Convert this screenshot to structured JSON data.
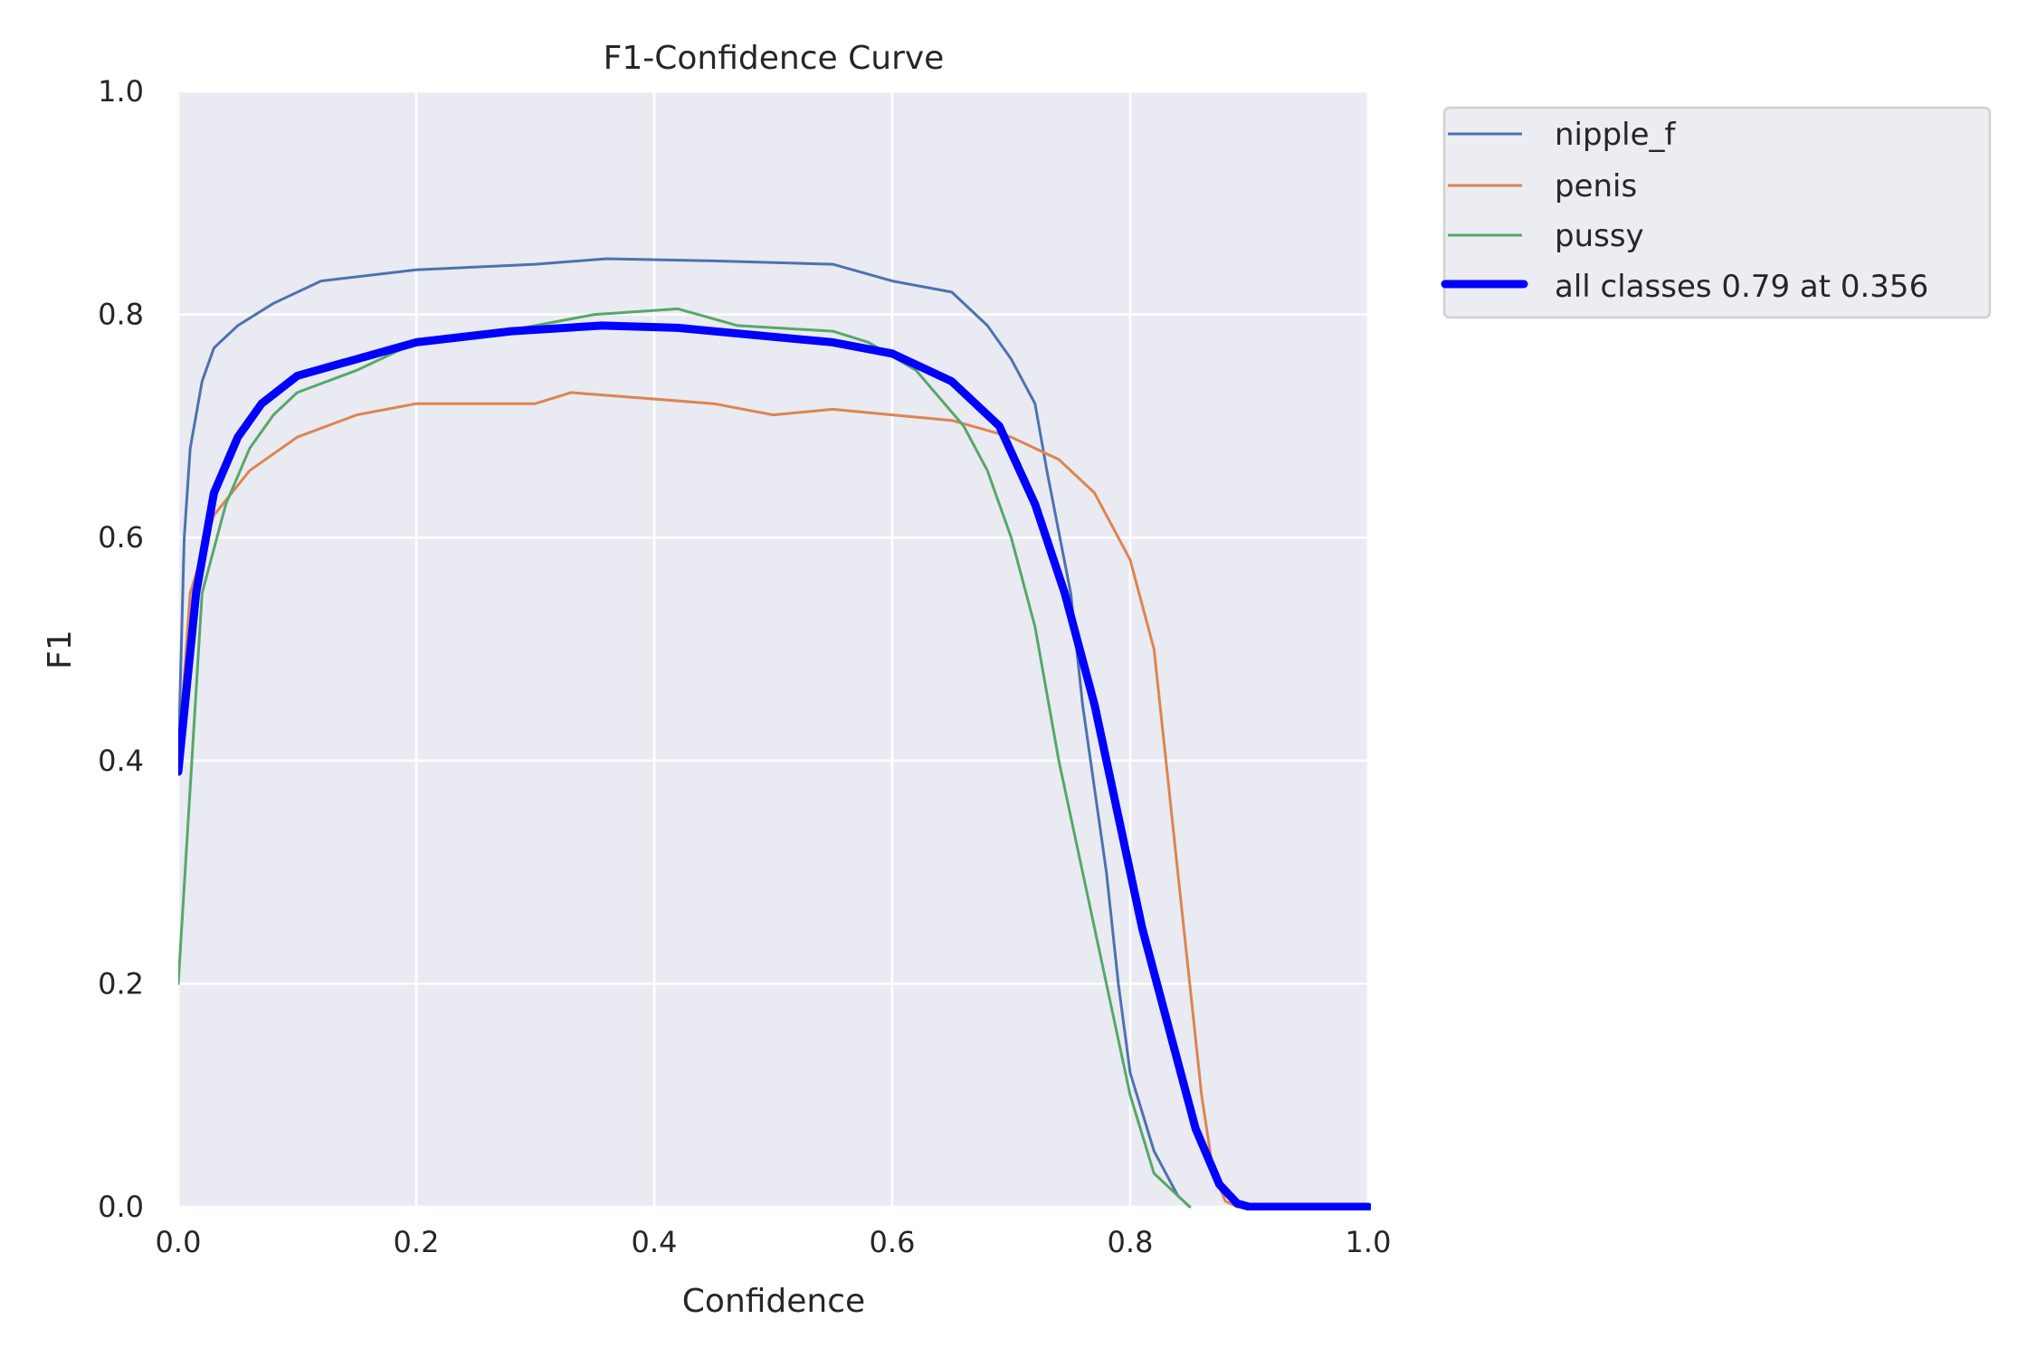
{
  "chart_data": {
    "type": "line",
    "title": "F1-Confidence Curve",
    "xlabel": "Confidence",
    "ylabel": "F1",
    "xlim": [
      0,
      1
    ],
    "ylim": [
      0,
      1
    ],
    "xticks": [
      "0.0",
      "0.2",
      "0.4",
      "0.6",
      "0.8",
      "1.0"
    ],
    "yticks": [
      "0.0",
      "0.2",
      "0.4",
      "0.6",
      "0.8",
      "1.0"
    ],
    "grid": true,
    "legend_position": "outside upper right",
    "series": [
      {
        "name": "nipple_f",
        "color": "#4c72b0",
        "width": 3,
        "x": [
          0,
          0.005,
          0.01,
          0.02,
          0.03,
          0.05,
          0.08,
          0.12,
          0.2,
          0.3,
          0.36,
          0.45,
          0.55,
          0.6,
          0.65,
          0.68,
          0.7,
          0.72,
          0.73,
          0.75,
          0.76,
          0.78,
          0.79,
          0.8,
          0.82,
          0.84,
          0.85
        ],
        "y": [
          0.4,
          0.6,
          0.68,
          0.74,
          0.77,
          0.79,
          0.81,
          0.83,
          0.84,
          0.845,
          0.85,
          0.848,
          0.845,
          0.83,
          0.82,
          0.79,
          0.76,
          0.72,
          0.66,
          0.55,
          0.45,
          0.3,
          0.2,
          0.12,
          0.05,
          0.01,
          0
        ]
      },
      {
        "name": "penis",
        "color": "#dd8452",
        "width": 3,
        "x": [
          0,
          0.01,
          0.03,
          0.06,
          0.1,
          0.15,
          0.2,
          0.3,
          0.33,
          0.45,
          0.5,
          0.55,
          0.6,
          0.65,
          0.7,
          0.74,
          0.77,
          0.8,
          0.82,
          0.83,
          0.84,
          0.85,
          0.86,
          0.87,
          0.88,
          0.89
        ],
        "y": [
          0.4,
          0.55,
          0.62,
          0.66,
          0.69,
          0.71,
          0.72,
          0.72,
          0.73,
          0.72,
          0.71,
          0.715,
          0.71,
          0.705,
          0.69,
          0.67,
          0.64,
          0.58,
          0.5,
          0.4,
          0.3,
          0.2,
          0.1,
          0.03,
          0.005,
          0
        ]
      },
      {
        "name": "pussy",
        "color": "#55a868",
        "width": 3,
        "x": [
          0,
          0.02,
          0.04,
          0.06,
          0.08,
          0.1,
          0.15,
          0.2,
          0.25,
          0.3,
          0.35,
          0.42,
          0.47,
          0.55,
          0.58,
          0.62,
          0.66,
          0.68,
          0.7,
          0.72,
          0.74,
          0.76,
          0.78,
          0.8,
          0.82,
          0.84,
          0.85
        ],
        "y": [
          0.2,
          0.55,
          0.63,
          0.68,
          0.71,
          0.73,
          0.75,
          0.775,
          0.78,
          0.79,
          0.8,
          0.805,
          0.79,
          0.785,
          0.775,
          0.75,
          0.7,
          0.66,
          0.6,
          0.52,
          0.4,
          0.3,
          0.2,
          0.1,
          0.03,
          0.01,
          0
        ]
      },
      {
        "name": "all classes 0.79 at 0.356",
        "color": "#0000ff",
        "width": 9,
        "x": [
          0,
          0.015,
          0.03,
          0.05,
          0.07,
          0.1,
          0.15,
          0.2,
          0.28,
          0.356,
          0.42,
          0.5,
          0.55,
          0.6,
          0.65,
          0.69,
          0.72,
          0.745,
          0.77,
          0.79,
          0.81,
          0.835,
          0.855,
          0.875,
          0.89,
          0.9,
          1.0
        ],
        "y": [
          0.39,
          0.55,
          0.64,
          0.69,
          0.72,
          0.745,
          0.76,
          0.775,
          0.785,
          0.79,
          0.788,
          0.78,
          0.775,
          0.765,
          0.74,
          0.7,
          0.63,
          0.55,
          0.45,
          0.35,
          0.25,
          0.15,
          0.07,
          0.02,
          0.003,
          0,
          0
        ]
      }
    ]
  },
  "legend": {
    "items": [
      {
        "label": "nipple_f"
      },
      {
        "label": "penis"
      },
      {
        "label": "pussy"
      },
      {
        "label": "all classes 0.79 at 0.356"
      }
    ]
  },
  "colors": {
    "plot_background": "#eaeaf2",
    "grid": "#ffffff",
    "legend_background": "#eaeaf2",
    "legend_border": "#cccccc",
    "text": "#262626"
  }
}
